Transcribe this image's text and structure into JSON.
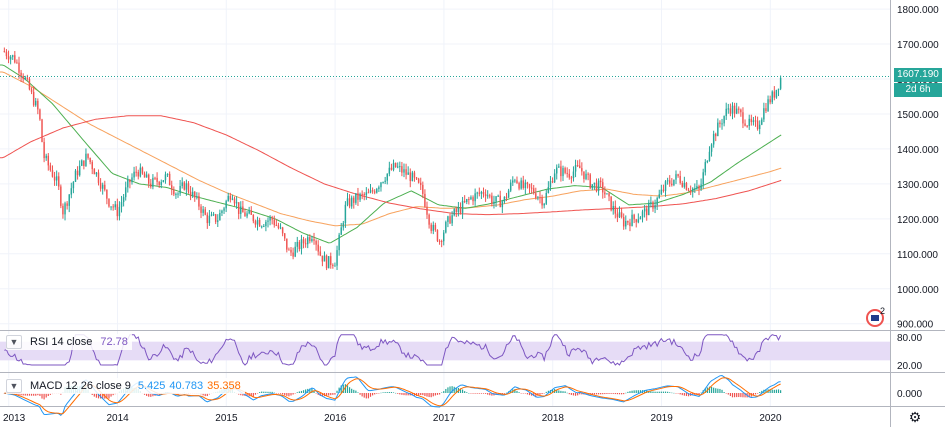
{
  "chart_data": {
    "type": "candlestick",
    "symbol_note": "weekly price chart with moving averages, RSI and MACD panes",
    "price_axis": {
      "ticks": [
        "1800.000",
        "1700.000",
        "1600.000",
        "1500.000",
        "1400.000",
        "1300.000",
        "1200.000",
        "1100.000",
        "1000.000",
        "900.000"
      ],
      "tick_values": [
        1800,
        1700,
        1600,
        1500,
        1400,
        1300,
        1200,
        1100,
        1000,
        900
      ],
      "ylim": [
        882,
        1826
      ]
    },
    "time_axis": {
      "labels": [
        "2013",
        "2014",
        "2015",
        "2016",
        "2017",
        "2018",
        "2019",
        "2020"
      ],
      "label_years": [
        2013,
        2014,
        2015,
        2016,
        2017,
        2018,
        2019,
        2020
      ],
      "xlim": [
        2012.92,
        2021.1
      ]
    },
    "last_price": {
      "value": 1607.19,
      "label": "1607.190",
      "countdown": "2d 6h",
      "color": "#26a69a"
    },
    "price_anchors": [
      [
        2012.95,
        1680
      ],
      [
        2013.05,
        1660
      ],
      [
        2013.15,
        1600
      ],
      [
        2013.28,
        1500
      ],
      [
        2013.32,
        1380
      ],
      [
        2013.45,
        1300
      ],
      [
        2013.5,
        1220
      ],
      [
        2013.62,
        1330
      ],
      [
        2013.72,
        1380
      ],
      [
        2013.82,
        1320
      ],
      [
        2013.92,
        1250
      ],
      [
        2014.0,
        1220
      ],
      [
        2014.1,
        1300
      ],
      [
        2014.18,
        1340
      ],
      [
        2014.3,
        1300
      ],
      [
        2014.45,
        1320
      ],
      [
        2014.55,
        1270
      ],
      [
        2014.62,
        1300
      ],
      [
        2014.75,
        1240
      ],
      [
        2014.82,
        1200
      ],
      [
        2014.92,
        1200
      ],
      [
        2015.05,
        1280
      ],
      [
        2015.12,
        1220
      ],
      [
        2015.2,
        1210
      ],
      [
        2015.32,
        1190
      ],
      [
        2015.42,
        1200
      ],
      [
        2015.5,
        1165
      ],
      [
        2015.58,
        1100
      ],
      [
        2015.7,
        1130
      ],
      [
        2015.8,
        1160
      ],
      [
        2015.86,
        1100
      ],
      [
        2015.92,
        1075
      ],
      [
        2016.0,
        1080
      ],
      [
        2016.1,
        1240
      ],
      [
        2016.2,
        1260
      ],
      [
        2016.32,
        1270
      ],
      [
        2016.45,
        1320
      ],
      [
        2016.55,
        1350
      ],
      [
        2016.7,
        1320
      ],
      [
        2016.8,
        1280
      ],
      [
        2016.88,
        1180
      ],
      [
        2016.96,
        1140
      ],
      [
        2017.05,
        1200
      ],
      [
        2017.15,
        1230
      ],
      [
        2017.25,
        1260
      ],
      [
        2017.38,
        1280
      ],
      [
        2017.45,
        1250
      ],
      [
        2017.55,
        1250
      ],
      [
        2017.65,
        1320
      ],
      [
        2017.72,
        1290
      ],
      [
        2017.82,
        1280
      ],
      [
        2017.92,
        1250
      ],
      [
        2018.02,
        1340
      ],
      [
        2018.15,
        1330
      ],
      [
        2018.25,
        1345
      ],
      [
        2018.35,
        1300
      ],
      [
        2018.45,
        1290
      ],
      [
        2018.55,
        1230
      ],
      [
        2018.65,
        1190
      ],
      [
        2018.75,
        1200
      ],
      [
        2018.85,
        1220
      ],
      [
        2018.95,
        1250
      ],
      [
        2019.05,
        1300
      ],
      [
        2019.15,
        1320
      ],
      [
        2019.25,
        1290
      ],
      [
        2019.35,
        1280
      ],
      [
        2019.45,
        1420
      ],
      [
        2019.55,
        1480
      ],
      [
        2019.62,
        1520
      ],
      [
        2019.72,
        1500
      ],
      [
        2019.8,
        1470
      ],
      [
        2019.88,
        1465
      ],
      [
        2019.95,
        1520
      ],
      [
        2020.04,
        1560
      ],
      [
        2020.1,
        1607
      ]
    ],
    "ma_series": [
      {
        "color": "#f7a25d",
        "anchors": [
          [
            2012.95,
            1620
          ],
          [
            2013.2,
            1580
          ],
          [
            2013.5,
            1520
          ],
          [
            2013.75,
            1470
          ],
          [
            2014.0,
            1430
          ],
          [
            2014.25,
            1390
          ],
          [
            2014.5,
            1350
          ],
          [
            2014.75,
            1310
          ],
          [
            2015.0,
            1275
          ],
          [
            2015.25,
            1245
          ],
          [
            2015.5,
            1215
          ],
          [
            2015.75,
            1195
          ],
          [
            2016.0,
            1180
          ],
          [
            2016.25,
            1185
          ],
          [
            2016.5,
            1215
          ],
          [
            2016.75,
            1235
          ],
          [
            2017.0,
            1230
          ],
          [
            2017.25,
            1232
          ],
          [
            2017.5,
            1240
          ],
          [
            2017.75,
            1255
          ],
          [
            2018.0,
            1265
          ],
          [
            2018.25,
            1280
          ],
          [
            2018.5,
            1285
          ],
          [
            2018.75,
            1270
          ],
          [
            2019.0,
            1265
          ],
          [
            2019.25,
            1275
          ],
          [
            2019.5,
            1295
          ],
          [
            2019.75,
            1315
          ],
          [
            2020.0,
            1335
          ],
          [
            2020.1,
            1345
          ]
        ]
      },
      {
        "color": "#4caf50",
        "anchors": [
          [
            2012.95,
            1640
          ],
          [
            2013.15,
            1600
          ],
          [
            2013.4,
            1530
          ],
          [
            2013.7,
            1420
          ],
          [
            2013.95,
            1330
          ],
          [
            2014.2,
            1300
          ],
          [
            2014.45,
            1290
          ],
          [
            2014.7,
            1265
          ],
          [
            2014.95,
            1245
          ],
          [
            2015.2,
            1225
          ],
          [
            2015.45,
            1200
          ],
          [
            2015.7,
            1160
          ],
          [
            2015.95,
            1130
          ],
          [
            2016.2,
            1175
          ],
          [
            2016.45,
            1245
          ],
          [
            2016.7,
            1280
          ],
          [
            2016.95,
            1240
          ],
          [
            2017.2,
            1230
          ],
          [
            2017.45,
            1245
          ],
          [
            2017.7,
            1265
          ],
          [
            2017.95,
            1285
          ],
          [
            2018.2,
            1295
          ],
          [
            2018.45,
            1290
          ],
          [
            2018.7,
            1240
          ],
          [
            2018.95,
            1245
          ],
          [
            2019.2,
            1270
          ],
          [
            2019.45,
            1305
          ],
          [
            2019.7,
            1360
          ],
          [
            2019.95,
            1410
          ],
          [
            2020.1,
            1440
          ]
        ]
      },
      {
        "color": "#ef5350",
        "anchors": [
          [
            2012.95,
            1375
          ],
          [
            2013.2,
            1420
          ],
          [
            2013.5,
            1460
          ],
          [
            2013.8,
            1485
          ],
          [
            2014.1,
            1495
          ],
          [
            2014.4,
            1495
          ],
          [
            2014.7,
            1475
          ],
          [
            2015.0,
            1440
          ],
          [
            2015.3,
            1395
          ],
          [
            2015.6,
            1345
          ],
          [
            2015.9,
            1300
          ],
          [
            2016.2,
            1270
          ],
          [
            2016.5,
            1245
          ],
          [
            2016.8,
            1228
          ],
          [
            2017.1,
            1215
          ],
          [
            2017.4,
            1212
          ],
          [
            2017.7,
            1215
          ],
          [
            2018.0,
            1220
          ],
          [
            2018.3,
            1226
          ],
          [
            2018.6,
            1230
          ],
          [
            2018.9,
            1235
          ],
          [
            2019.2,
            1243
          ],
          [
            2019.5,
            1258
          ],
          [
            2019.8,
            1280
          ],
          [
            2020.1,
            1310
          ]
        ]
      }
    ],
    "rsi": {
      "label": "RSI 14 close",
      "value": "72.78",
      "ticks": [
        "80.00",
        "20.00"
      ],
      "tick_values": [
        80,
        20
      ],
      "ylim": [
        5,
        95
      ],
      "band": [
        30,
        70
      ],
      "line_color": "#7e57c2",
      "band_color": "#e6dcf6"
    },
    "macd": {
      "label": "MACD 12 26 close 9",
      "values": [
        "5.425",
        "40.783",
        "35.358"
      ],
      "value_colors": [
        "#2196f3",
        "#2196f3",
        "#ff6d00"
      ],
      "ticks": [
        "0.000"
      ],
      "macd_color": "#2196f3",
      "signal_color": "#ff6d00"
    },
    "grid": true,
    "colors": {
      "up": "#26a69a",
      "down": "#ef5350",
      "grid": "#f0f3fa",
      "text": "#131722"
    }
  },
  "icons": [
    "chevron-down-icon",
    "gear-icon",
    "flag-icon"
  ],
  "news_badge": "2"
}
